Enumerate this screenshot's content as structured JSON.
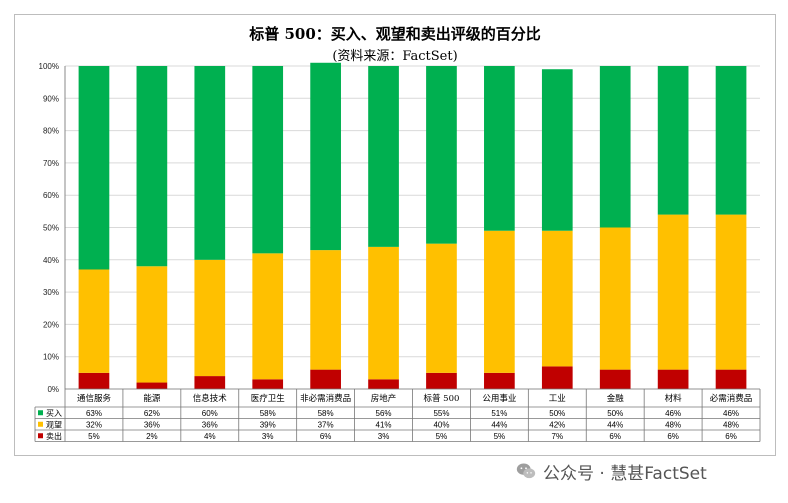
{
  "chart_data": {
    "type": "bar",
    "stacked": true,
    "title": "标普 500：买入、观望和卖出评级的百分比",
    "subtitle": "(资料来源：FactSet)",
    "categories": [
      "通信服务",
      "能源",
      "信息技术",
      "医疗卫生",
      "非必需消费品",
      "房地产",
      "标普 500",
      "公用事业",
      "工业",
      "金融",
      "材料",
      "必需消费品"
    ],
    "series": [
      {
        "name": "卖出",
        "color": "#c00000",
        "values": [
          5,
          2,
          4,
          3,
          6,
          3,
          5,
          5,
          7,
          6,
          6,
          6
        ]
      },
      {
        "name": "观望",
        "color": "#ffc000",
        "values": [
          32,
          36,
          36,
          39,
          37,
          41,
          40,
          44,
          42,
          44,
          48,
          48
        ]
      },
      {
        "name": "买入",
        "color": "#00b050",
        "values": [
          63,
          62,
          60,
          58,
          58,
          56,
          55,
          51,
          50,
          50,
          46,
          46
        ]
      }
    ],
    "table_rows": [
      {
        "name": "买入",
        "color": "#00b050",
        "labels": [
          "63%",
          "62%",
          "60%",
          "58%",
          "58%",
          "56%",
          "55%",
          "51%",
          "50%",
          "50%",
          "46%",
          "46%"
        ]
      },
      {
        "name": "观望",
        "color": "#ffc000",
        "labels": [
          "32%",
          "36%",
          "36%",
          "39%",
          "37%",
          "41%",
          "40%",
          "44%",
          "42%",
          "44%",
          "48%",
          "48%"
        ]
      },
      {
        "name": "卖出",
        "color": "#c00000",
        "labels": [
          "5%",
          "2%",
          "4%",
          "3%",
          "6%",
          "3%",
          "5%",
          "5%",
          "7%",
          "6%",
          "6%",
          "6%"
        ]
      }
    ],
    "yticks": [
      "0%",
      "10%",
      "20%",
      "30%",
      "40%",
      "50%",
      "60%",
      "70%",
      "80%",
      "90%",
      "100%"
    ],
    "ylim": [
      0,
      100
    ],
    "grid": true,
    "legend": "data-table-left"
  },
  "watermark": {
    "text": "公众号 · 慧甚FactSet"
  }
}
